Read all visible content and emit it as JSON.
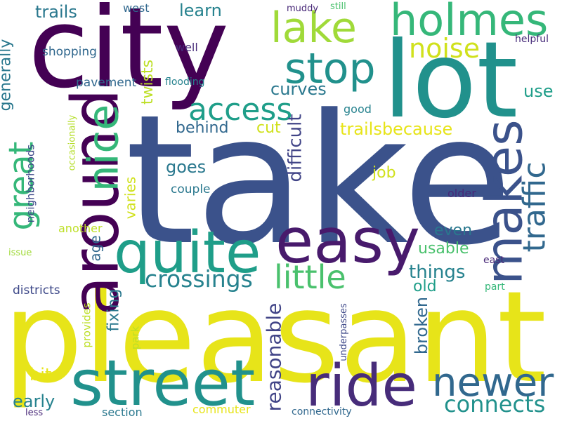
{
  "words": [
    {
      "text": "take",
      "color": "#3b528b",
      "rotated": false
    },
    {
      "text": "pleasant",
      "color": "#e7e419",
      "rotated": false
    },
    {
      "text": "city",
      "color": "#440154",
      "rotated": false
    },
    {
      "text": "lot",
      "color": "#21918c",
      "rotated": false
    },
    {
      "text": "around",
      "color": "#440154",
      "rotated": true
    },
    {
      "text": "street",
      "color": "#21918c",
      "rotated": false
    },
    {
      "text": "easy",
      "color": "#481a6c",
      "rotated": false
    },
    {
      "text": "quite",
      "color": "#1f9e89",
      "rotated": false
    },
    {
      "text": "ride",
      "color": "#472c7a",
      "rotated": false
    },
    {
      "text": "holmes",
      "color": "#35b779",
      "rotated": false
    },
    {
      "text": "makes",
      "color": "#3b528b",
      "rotated": true
    },
    {
      "text": "nice",
      "color": "#35b779",
      "rotated": true
    },
    {
      "text": "lake",
      "color": "#a0da39",
      "rotated": false
    },
    {
      "text": "stop",
      "color": "#21918c",
      "rotated": false
    },
    {
      "text": "newer",
      "color": "#31688e",
      "rotated": false
    },
    {
      "text": "little",
      "color": "#4ac16d",
      "rotated": false
    },
    {
      "text": "great",
      "color": "#35b779",
      "rotated": true
    },
    {
      "text": "traffic",
      "color": "#31688e",
      "rotated": true
    },
    {
      "text": "access",
      "color": "#1f9e89",
      "rotated": false
    },
    {
      "text": "noise",
      "color": "#d0e11c",
      "rotated": false
    },
    {
      "text": "crossings",
      "color": "#26828e",
      "rotated": false
    },
    {
      "text": "connects",
      "color": "#21918c",
      "rotated": false
    },
    {
      "text": "reasonable",
      "color": "#414487",
      "rotated": true
    },
    {
      "text": "difficult",
      "color": "#414487",
      "rotated": true
    },
    {
      "text": "trailsbecause",
      "color": "#e7e419",
      "rotated": false
    },
    {
      "text": "trails",
      "color": "#2a788e",
      "rotated": false
    },
    {
      "text": "learn",
      "color": "#26828e",
      "rotated": false
    },
    {
      "text": "curves",
      "color": "#2a788e",
      "rotated": false
    },
    {
      "text": "behind",
      "color": "#31688e",
      "rotated": false
    },
    {
      "text": "goes",
      "color": "#2a788e",
      "rotated": false
    },
    {
      "text": "things",
      "color": "#26828e",
      "rotated": false
    },
    {
      "text": "usable",
      "color": "#4ac16d",
      "rotated": false
    },
    {
      "text": "even",
      "color": "#2a788e",
      "rotated": false
    },
    {
      "text": "broken",
      "color": "#31688e",
      "rotated": true
    },
    {
      "text": "early",
      "color": "#26828e",
      "rotated": false
    },
    {
      "text": "generally",
      "color": "#2a788e",
      "rotated": true
    },
    {
      "text": "twists",
      "color": "#bddf26",
      "rotated": true
    },
    {
      "text": "fixing",
      "color": "#2a788e",
      "rotated": true
    },
    {
      "text": "varies",
      "color": "#d0e11c",
      "rotated": true
    },
    {
      "text": "age",
      "color": "#31688e",
      "rotated": true
    },
    {
      "text": "use",
      "color": "#1f9e89",
      "rotated": false
    },
    {
      "text": "job",
      "color": "#d0e11c",
      "rotated": false
    },
    {
      "text": "cut",
      "color": "#d0e11c",
      "rotated": false
    },
    {
      "text": "old",
      "color": "#1f9e89",
      "rotated": false
    },
    {
      "text": "bit",
      "color": "#e7e419",
      "rotated": false
    },
    {
      "text": "shopping",
      "color": "#31688e",
      "rotated": false
    },
    {
      "text": "pavement",
      "color": "#31688e",
      "rotated": false
    },
    {
      "text": "couple",
      "color": "#2a788e",
      "rotated": false
    },
    {
      "text": "districts",
      "color": "#3e4989",
      "rotated": false
    },
    {
      "text": "neighborhoods",
      "color": "#3e4989",
      "rotated": true
    },
    {
      "text": "occasionally",
      "color": "#b5de2b",
      "rotated": true
    },
    {
      "text": "provides",
      "color": "#bddf26",
      "rotated": true
    },
    {
      "text": "park",
      "color": "#bddf26",
      "rotated": true
    },
    {
      "text": "underpasses",
      "color": "#3e4989",
      "rotated": true
    },
    {
      "text": "another",
      "color": "#bddf26",
      "rotated": false
    },
    {
      "text": "section",
      "color": "#2a788e",
      "rotated": false
    },
    {
      "text": "commuter",
      "color": "#e7e419",
      "rotated": false
    },
    {
      "text": "connectivity",
      "color": "#31688e",
      "rotated": false
    },
    {
      "text": "good",
      "color": "#26828e",
      "rotated": false
    },
    {
      "text": "older",
      "color": "#482878",
      "rotated": false
    },
    {
      "text": "east",
      "color": "#482878",
      "rotated": false
    },
    {
      "text": "part",
      "color": "#35b779",
      "rotated": false
    },
    {
      "text": "helpful",
      "color": "#472c7a",
      "rotated": false
    },
    {
      "text": "west",
      "color": "#31688e",
      "rotated": false
    },
    {
      "text": "well",
      "color": "#472c7a",
      "rotated": false
    },
    {
      "text": "flooding",
      "color": "#26828e",
      "rotated": false
    },
    {
      "text": "muddy",
      "color": "#482878",
      "rotated": false
    },
    {
      "text": "still",
      "color": "#4ac16d",
      "rotated": false
    },
    {
      "text": "issue",
      "color": "#a0da39",
      "rotated": false
    },
    {
      "text": "less",
      "color": "#482878",
      "rotated": false
    }
  ]
}
